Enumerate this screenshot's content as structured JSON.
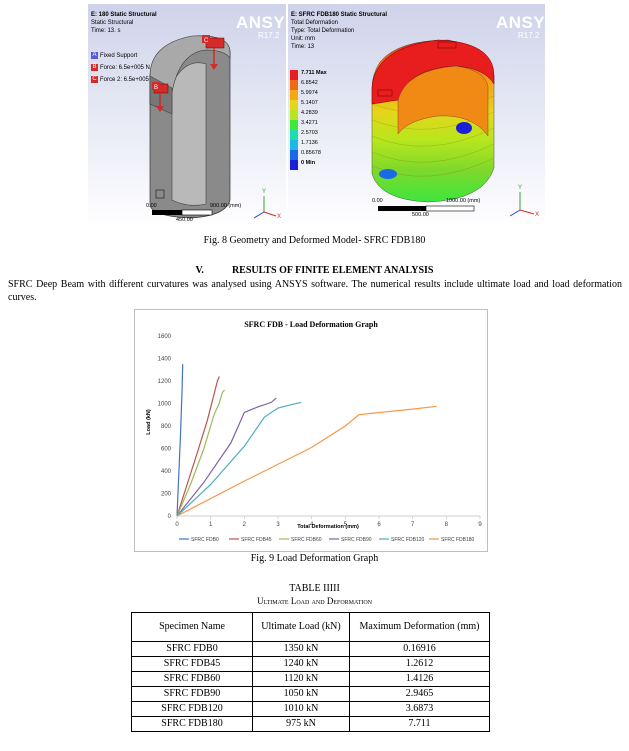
{
  "fig8": {
    "left_panel": {
      "title": "E: 180 Static Structural",
      "subtitle": "Static Structural",
      "time": "Time: 13. s",
      "ansys": "ANSYS",
      "version": "R17.2",
      "bcs": [
        {
          "letter": "A",
          "label": "Fixed Support",
          "color": "#5a5ad8"
        },
        {
          "letter": "B",
          "label": "Force: 6.5e+005 N",
          "color": "#d42a2a"
        },
        {
          "letter": "C",
          "label": "Force 2: 6.5e+005 N",
          "color": "#d42a2a"
        }
      ],
      "scale_start": "0.00",
      "scale_end": "900.00 (mm)",
      "scale_mid": "450.00"
    },
    "right_panel": {
      "title": "E: SFRC FDB180 Static Structural",
      "line2": "Total Deformation",
      "line3": "Type: Total Deformation",
      "line4": "Unit: mm",
      "line5": "Time: 13",
      "ansys": "ANSYS",
      "version": "R17.2",
      "legend": [
        {
          "label": "7.711 Max",
          "color": "#e81d1d"
        },
        {
          "label": "6.8542",
          "color": "#f06a14"
        },
        {
          "label": "5.9974",
          "color": "#f5a814"
        },
        {
          "label": "5.1407",
          "color": "#e5d619"
        },
        {
          "label": "4.2839",
          "color": "#b6e61d"
        },
        {
          "label": "3.4271",
          "color": "#3ee63e"
        },
        {
          "label": "2.5703",
          "color": "#1ddcb0"
        },
        {
          "label": "1.7136",
          "color": "#1ab9e6"
        },
        {
          "label": "0.85678",
          "color": "#1a6ae6"
        },
        {
          "label": "0 Min",
          "color": "#1a20d8"
        }
      ],
      "scale_start": "0.00",
      "scale_end": "1000.00 (mm)",
      "scale_mid": "500.00"
    },
    "caption": "Fig. 8 Geometry and Deformed Model- SFRC FDB180"
  },
  "section": {
    "number": "V.",
    "title": "RESULTS OF FINITE ELEMENT ANALYSIS",
    "body": "SFRC Deep Beam with different curvatures was analysed using ANSYS software. The numerical results include ultimate load and load deformation curves."
  },
  "chart_data": {
    "type": "line",
    "title": "SFRC FDB - Load Deformation Graph",
    "xlabel": "Total Deformation (mm)",
    "ylabel": "Load (kN)",
    "xlim": [
      0,
      9
    ],
    "ylim": [
      0,
      1600
    ],
    "xticks": [
      0,
      1,
      2,
      3,
      4,
      5,
      6,
      7,
      8,
      9
    ],
    "yticks": [
      0,
      200,
      400,
      600,
      800,
      1000,
      1200,
      1400,
      1600
    ],
    "grid": false,
    "legend_position": "bottom",
    "series": [
      {
        "name": "SFRC FDB0",
        "color": "#4472c4",
        "x": [
          0,
          0.05,
          0.1,
          0.15,
          0.17
        ],
        "y": [
          0,
          350,
          700,
          1100,
          1350
        ]
      },
      {
        "name": "SFRC FDB45",
        "color": "#c0504d",
        "x": [
          0,
          0.3,
          0.6,
          0.9,
          1.1,
          1.2,
          1.26
        ],
        "y": [
          0,
          280,
          560,
          850,
          1080,
          1200,
          1240
        ]
      },
      {
        "name": "SFRC FDB60",
        "color": "#9bbb59",
        "x": [
          0,
          0.4,
          0.8,
          1.1,
          1.25,
          1.35,
          1.41
        ],
        "y": [
          0,
          280,
          600,
          900,
          1000,
          1100,
          1120
        ]
      },
      {
        "name": "SFRC FDB90",
        "color": "#8064a2",
        "x": [
          0,
          0.8,
          1.6,
          2.0,
          2.4,
          2.8,
          2.95
        ],
        "y": [
          0,
          300,
          650,
          920,
          970,
          1010,
          1050
        ]
      },
      {
        "name": "SFRC FDB120",
        "color": "#4bacc6",
        "x": [
          0,
          1.0,
          2.0,
          2.6,
          3.0,
          3.4,
          3.69
        ],
        "y": [
          0,
          280,
          620,
          880,
          960,
          990,
          1010
        ]
      },
      {
        "name": "SFRC FDB180",
        "color": "#f79646",
        "x": [
          0,
          2.0,
          4.0,
          5.0,
          5.4,
          6.0,
          7.0,
          7.711
        ],
        "y": [
          0,
          310,
          610,
          800,
          900,
          920,
          950,
          975
        ]
      }
    ]
  },
  "fig9": {
    "caption": "Fig. 9 Load Deformation Graph"
  },
  "table": {
    "title": "TABLE IIIII",
    "subtitle": "Ultimate Load and Deformation",
    "headers": [
      "Specimen Name",
      "Ultimate Load (kN)",
      "Maximum Deformation (mm)"
    ],
    "rows": [
      [
        "SFRC FDB0",
        "1350 kN",
        "0.16916"
      ],
      [
        "SFRC FDB45",
        "1240 kN",
        "1.2612"
      ],
      [
        "SFRC FDB60",
        "1120 kN",
        "1.4126"
      ],
      [
        "SFRC FDB90",
        "1050 kN",
        "2.9465"
      ],
      [
        "SFRC FDB120",
        "1010 kN",
        "3.6873"
      ],
      [
        "SFRC FDB180",
        "975 kN",
        "7.711"
      ]
    ]
  }
}
